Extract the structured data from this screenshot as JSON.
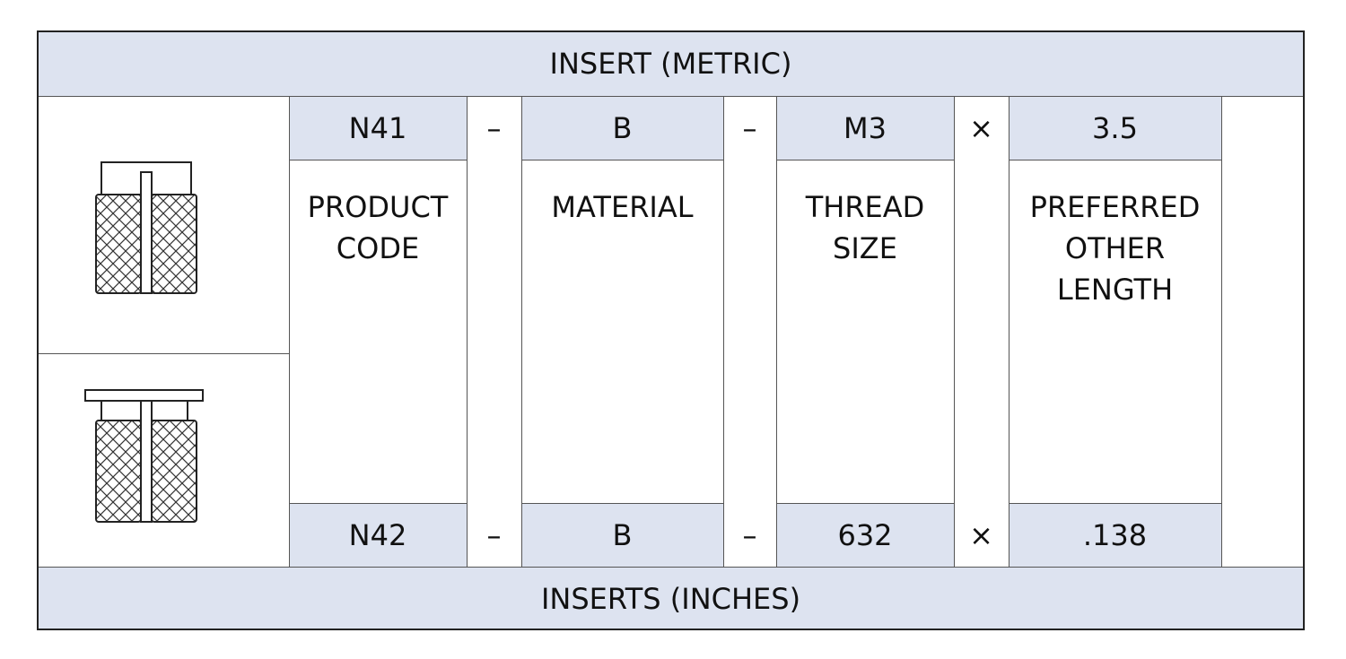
{
  "header": {
    "title": "INSERT (METRIC)"
  },
  "metric_row": [
    "N41",
    "–",
    "B",
    "–",
    "M3",
    "×",
    "3.5"
  ],
  "descriptions": [
    [
      "PRODUCT",
      "CODE"
    ],
    [
      "MATERIAL"
    ],
    [
      "THREAD",
      "SIZE"
    ],
    [
      "PREFERRED",
      "OTHER",
      "LENGTH"
    ]
  ],
  "inch_row": [
    "N42",
    "–",
    "B",
    "–",
    "632",
    "×",
    ".138"
  ],
  "footer": {
    "title": "INSERTS (INCHES)"
  }
}
